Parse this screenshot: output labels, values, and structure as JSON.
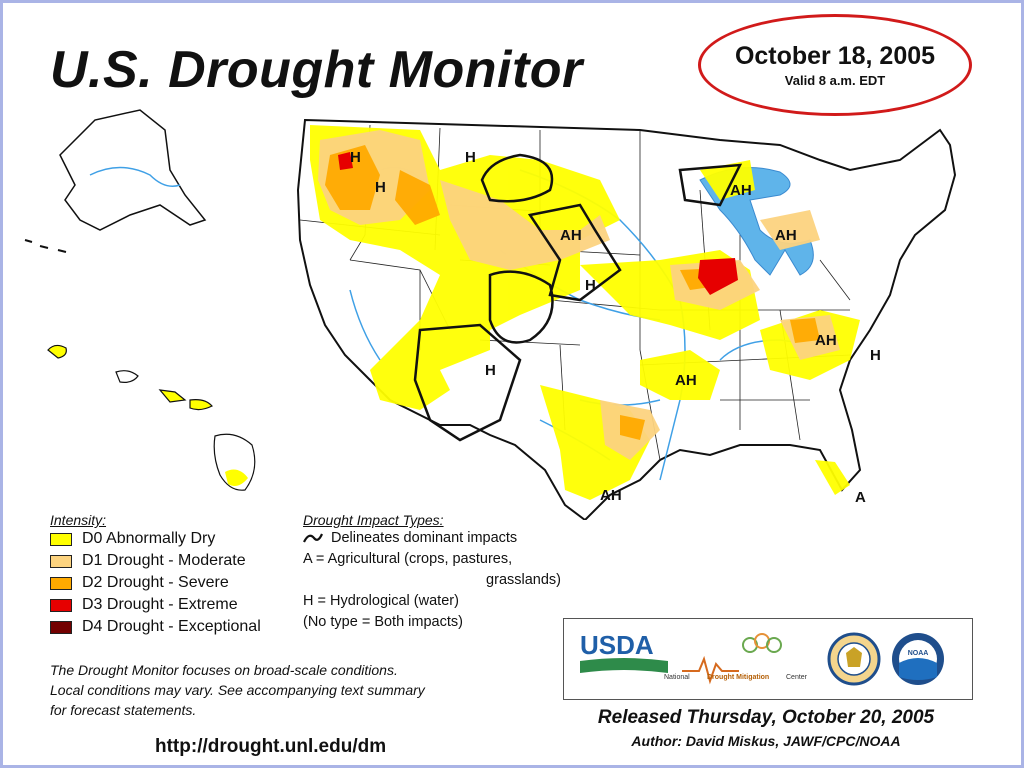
{
  "header": {
    "title": "U.S. Drought Monitor",
    "date": "October 18, 2005",
    "valid": "Valid 8 a.m. EDT"
  },
  "map": {
    "labels": [
      "H",
      "H",
      "H",
      "AH",
      "H",
      "AH",
      "H",
      "AH",
      "AH",
      "H",
      "AH",
      "AH",
      "A"
    ]
  },
  "legend_intensity": {
    "heading": "Intensity:",
    "items": [
      {
        "label": "D0 Abnormally Dry",
        "color": "#ffff00"
      },
      {
        "label": "D1 Drought - Moderate",
        "color": "#fcd37f"
      },
      {
        "label": "D2 Drought - Severe",
        "color": "#ffaa00"
      },
      {
        "label": "D3 Drought - Extreme",
        "color": "#e60000"
      },
      {
        "label": "D4 Drought - Exceptional",
        "color": "#730000"
      }
    ]
  },
  "legend_impact": {
    "heading": "Drought Impact Types:",
    "delineates": "Delineates dominant impacts",
    "agricultural": "A = Agricultural (crops, pastures,",
    "agricultural_cont": "grasslands)",
    "hydrological": "H = Hydrological (water)",
    "no_type": "(No type = Both impacts)"
  },
  "footer": {
    "note_line1": "The Drought Monitor focuses on broad-scale conditions.",
    "note_line2": "Local conditions may vary.  See accompanying text summary",
    "note_line3": "for forecast statements.",
    "url": "http://drought.unl.edu/dm",
    "released": "Released Thursday, October 20, 2005",
    "author": "Author:  David Miskus, JAWF/CPC/NOAA"
  },
  "logos": {
    "usda": "USDA",
    "ndmc_prefix": "National",
    "ndmc_name": "Drought Mitigation",
    "ndmc_suffix": "Center",
    "noaa": "NOAA"
  }
}
